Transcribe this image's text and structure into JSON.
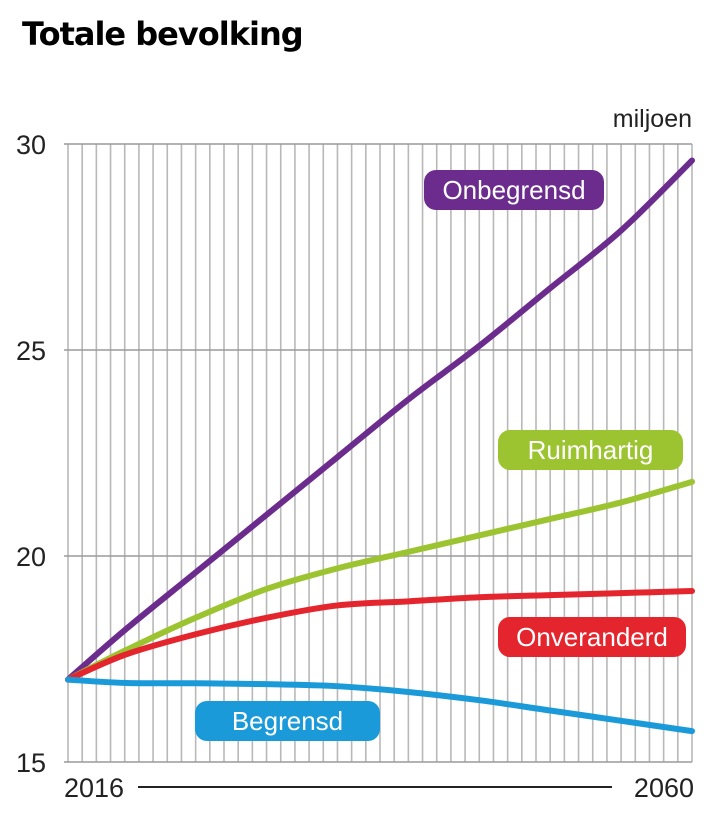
{
  "chart_data": {
    "type": "line",
    "title": "Totale bevolking",
    "unit": "miljoen",
    "x_start": 2016,
    "x_end": 2060,
    "x_ticks": [
      "2016",
      "2060"
    ],
    "ylim": [
      15,
      30
    ],
    "y_ticks": [
      15,
      20,
      25,
      30
    ],
    "grid": true,
    "x": [
      2016,
      2020,
      2025,
      2030,
      2035,
      2040,
      2045,
      2050,
      2055,
      2060
    ],
    "series": [
      {
        "name": "Onbegrensd",
        "color": "#6b2c8e",
        "values": [
          17.0,
          18.2,
          19.6,
          21.0,
          22.4,
          23.8,
          25.1,
          26.5,
          27.9,
          29.6
        ]
      },
      {
        "name": "Ruimhartig",
        "color": "#9cc430",
        "values": [
          17.0,
          17.7,
          18.5,
          19.2,
          19.7,
          20.1,
          20.5,
          20.9,
          21.3,
          21.8
        ]
      },
      {
        "name": "Onveranderd",
        "color": "#e4252d",
        "values": [
          17.0,
          17.6,
          18.1,
          18.5,
          18.8,
          18.9,
          19.0,
          19.05,
          19.1,
          19.15
        ]
      },
      {
        "name": "Begrensd",
        "color": "#1a9ad8",
        "values": [
          17.0,
          16.92,
          16.91,
          16.89,
          16.84,
          16.7,
          16.5,
          16.25,
          16.0,
          15.75
        ]
      }
    ]
  }
}
